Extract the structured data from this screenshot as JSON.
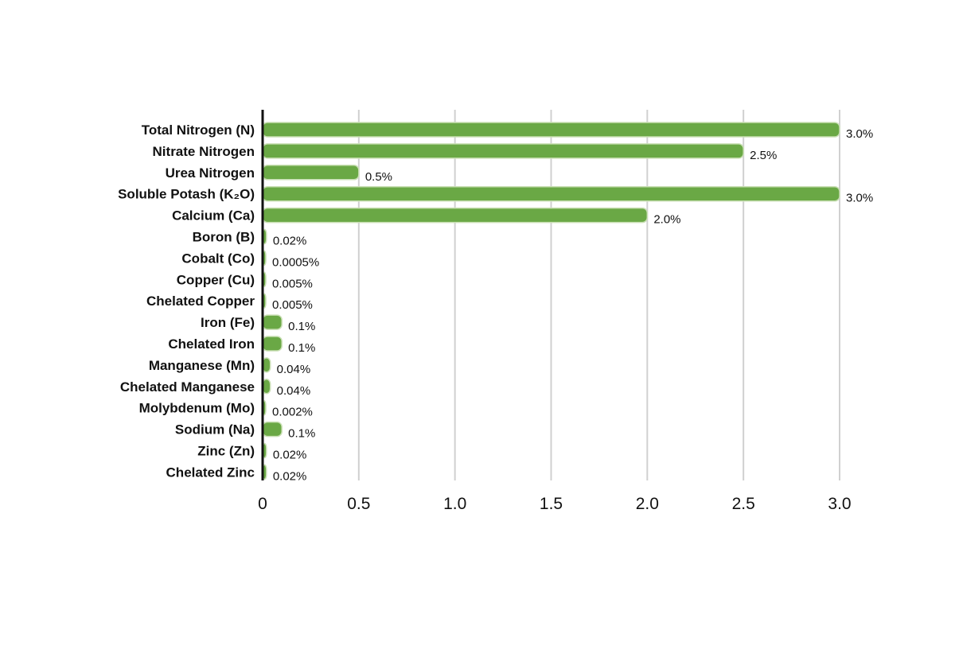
{
  "chart_data": {
    "type": "bar",
    "orientation": "horizontal",
    "title": "",
    "xlabel": "",
    "ylabel": "",
    "categories": [
      "Total Nitrogen (N)",
      "Nitrate Nitrogen",
      "Urea Nitrogen",
      "Soluble Potash (K₂O)",
      "Calcium (Ca)",
      "Boron (B)",
      "Cobalt (Co)",
      "Copper (Cu)",
      "Chelated Copper",
      "Iron (Fe)",
      "Chelated Iron",
      "Manganese (Mn)",
      "Chelated Manganese",
      "Molybdenum (Mo)",
      "Sodium (Na)",
      "Zinc (Zn)",
      "Chelated Zinc"
    ],
    "values": [
      3.0,
      2.5,
      0.5,
      3.0,
      2.0,
      0.02,
      0.0005,
      0.005,
      0.005,
      0.1,
      0.1,
      0.04,
      0.04,
      0.002,
      0.1,
      0.02,
      0.02
    ],
    "value_labels": [
      "3.0%",
      "2.5%",
      "0.5%",
      "3.0%",
      "2.0%",
      "0.02%",
      "0.0005%",
      "0.005%",
      "0.005%",
      "0.1%",
      "0.1%",
      "0.04%",
      "0.04%",
      "0.002%",
      "0.1%",
      "0.02%",
      "0.02%"
    ],
    "xticks": [
      0,
      0.5,
      1.0,
      1.5,
      2.0,
      2.5,
      3.0
    ],
    "xtick_labels": [
      "0",
      "0.5",
      "1.0",
      "1.5",
      "2.0",
      "2.5",
      "3.0"
    ],
    "xlim": [
      0,
      3.0
    ],
    "grid": "vertical",
    "legend": "none",
    "bar_color": "#6aa845"
  }
}
